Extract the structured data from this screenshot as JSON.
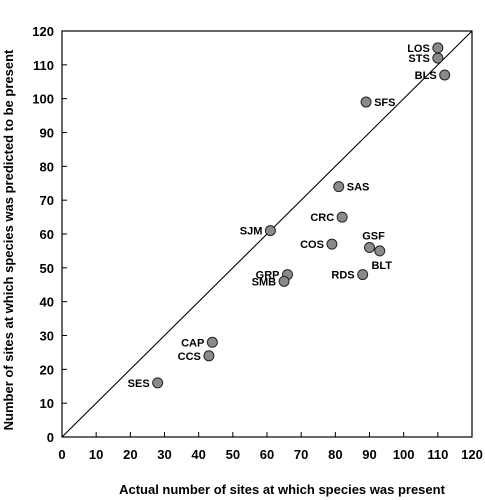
{
  "chart_data": {
    "type": "scatter",
    "title": "",
    "xlabel": "Actual number of sites at which species was present",
    "ylabel": "Number of sites at which species was predicted to be present",
    "xlim": [
      0,
      120
    ],
    "ylim": [
      0,
      120
    ],
    "xticks": [
      0,
      10,
      20,
      30,
      40,
      50,
      60,
      70,
      80,
      90,
      100,
      110,
      120
    ],
    "yticks": [
      0,
      10,
      20,
      30,
      40,
      50,
      60,
      70,
      80,
      90,
      100,
      110,
      120
    ],
    "grid": false,
    "reference_line": {
      "type": "identity",
      "from": [
        0,
        0
      ],
      "to": [
        120,
        120
      ]
    },
    "marker_color": "#8a8a8a",
    "points": [
      {
        "label": "LOS",
        "x": 110,
        "y": 115,
        "label_side": "left"
      },
      {
        "label": "STS",
        "x": 110,
        "y": 112,
        "label_side": "left"
      },
      {
        "label": "BLS",
        "x": 112,
        "y": 107,
        "label_side": "left"
      },
      {
        "label": "SFS",
        "x": 89,
        "y": 99,
        "label_side": "right"
      },
      {
        "label": "SAS",
        "x": 81,
        "y": 74,
        "label_side": "right"
      },
      {
        "label": "CRC",
        "x": 82,
        "y": 65,
        "label_side": "left"
      },
      {
        "label": "SJM",
        "x": 61,
        "y": 61,
        "label_side": "left"
      },
      {
        "label": "COS",
        "x": 79,
        "y": 57,
        "label_side": "left"
      },
      {
        "label": "GSF",
        "x": 90,
        "y": 56,
        "label_side": "above"
      },
      {
        "label": "BLT",
        "x": 93,
        "y": 55,
        "label_side": "below"
      },
      {
        "label": "RDS",
        "x": 88,
        "y": 48,
        "label_side": "left"
      },
      {
        "label": "GRP",
        "x": 66,
        "y": 48,
        "label_side": "left"
      },
      {
        "label": "SMB",
        "x": 65,
        "y": 46,
        "label_side": "left"
      },
      {
        "label": "CAP",
        "x": 44,
        "y": 28,
        "label_side": "left"
      },
      {
        "label": "CCS",
        "x": 43,
        "y": 24,
        "label_side": "left"
      },
      {
        "label": "SES",
        "x": 28,
        "y": 16,
        "label_side": "left"
      }
    ]
  }
}
